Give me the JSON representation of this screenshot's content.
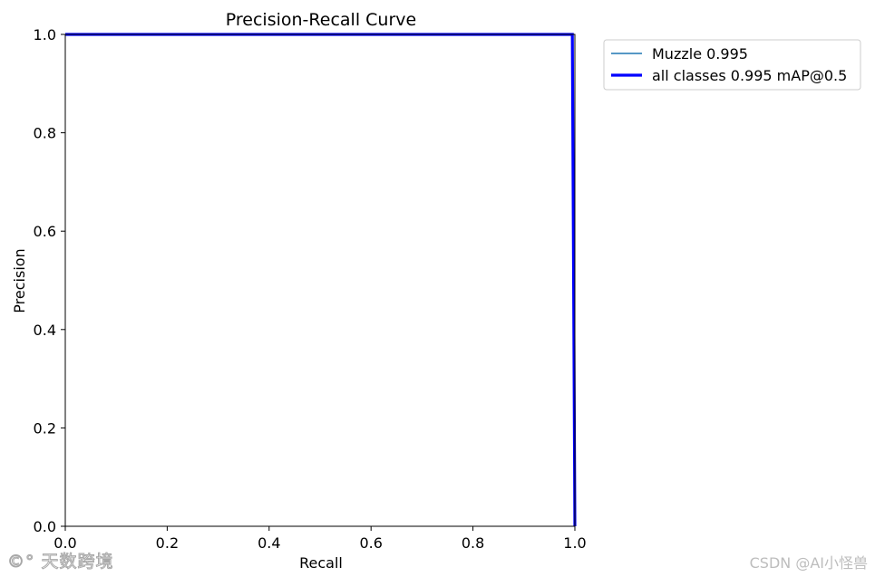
{
  "chart_data": {
    "type": "line",
    "title": "Precision-Recall Curve",
    "xlabel": "Recall",
    "ylabel": "Precision",
    "xlim": [
      0,
      1
    ],
    "ylim": [
      0,
      1
    ],
    "xticks": [
      "0.0",
      "0.2",
      "0.4",
      "0.6",
      "0.8",
      "1.0"
    ],
    "yticks": [
      "0.0",
      "0.2",
      "0.4",
      "0.6",
      "0.8",
      "1.0"
    ],
    "grid": false,
    "legend_position": "outside-top-right",
    "series": [
      {
        "name": "Muzzle 0.995",
        "color": "#1f77b4",
        "x": [
          0.0,
          0.995,
          1.0
        ],
        "y": [
          1.0,
          1.0,
          0.0
        ]
      },
      {
        "name": "all classes 0.995 mAP@0.5",
        "color": "#0000ff",
        "x": [
          0.0,
          0.995,
          1.0
        ],
        "y": [
          1.0,
          1.0,
          0.0
        ]
      }
    ]
  },
  "watermark": {
    "left": "©° 天数跨境",
    "right": "CSDN @AI小怪兽"
  }
}
